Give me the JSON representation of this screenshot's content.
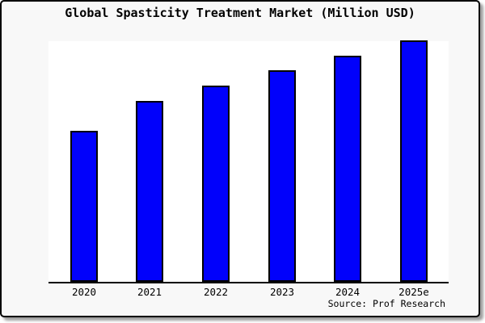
{
  "title": "Global Spasticity Treatment Market (Million USD)",
  "source": "Source: Prof Research",
  "colors": {
    "bar_fill": "#0101fb",
    "bar_border": "#000000",
    "frame_background": "#f8f8f8",
    "plot_background": "#ffffff",
    "axis": "#000000",
    "frame_border": "#000000",
    "text": "#000000"
  },
  "chart_data": {
    "type": "bar",
    "title": "Global Spasticity Treatment Market (Million USD)",
    "categories": [
      "2020",
      "2021",
      "2022",
      "2023",
      "2024",
      "2025e"
    ],
    "values": [
      62.5,
      75.0,
      81.3,
      87.6,
      93.6,
      100.0
    ],
    "value_basis": "relative height, tallest bar (2025e) = 100; y-axis unlabeled in source image",
    "xlabel": "",
    "ylabel": "",
    "ylim": [
      0,
      100
    ],
    "grid": false,
    "legend": false
  }
}
